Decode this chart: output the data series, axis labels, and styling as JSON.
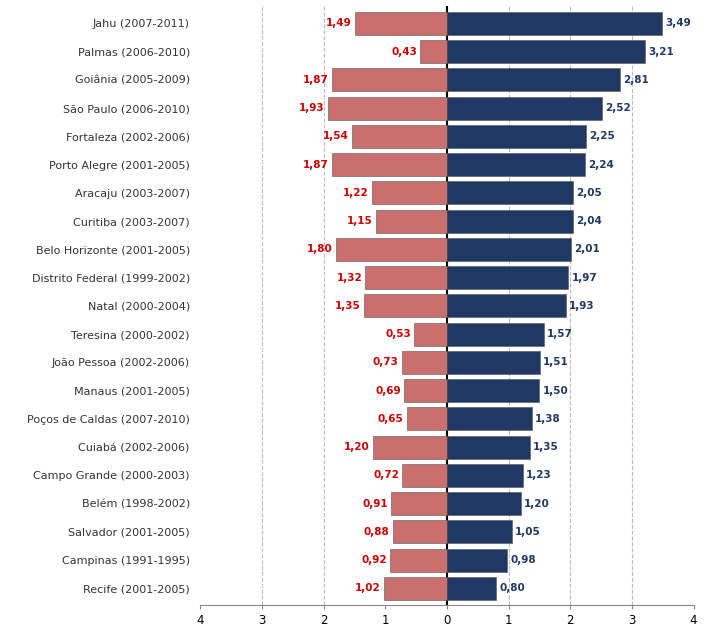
{
  "categories": [
    "Jahu (2007-2011)",
    "Palmas (2006-2010)",
    "Goiânia (2005-2009)",
    "São Paulo (2006-2010)",
    "Fortaleza (2002-2006)",
    "Porto Alegre (2001-2005)",
    "Aracaju (2003-2007)",
    "Curitiba (2003-2007)",
    "Belo Horizonte (2001-2005)",
    "Distrito Federal (1999-2002)",
    "Natal (2000-2004)",
    "Teresina (2000-2002)",
    "João Pessoa (2002-2006)",
    "Manaus (2001-2005)",
    "Poços de Caldas (2007-2010)",
    "Cuiabá (2002-2006)",
    "Campo Grande (2000-2003)",
    "Belém (1998-2002)",
    "Salvador (2001-2005)",
    "Campinas (1991-1995)",
    "Recife (2001-2005)"
  ],
  "female_values": [
    1.49,
    0.43,
    1.87,
    1.93,
    1.54,
    1.87,
    1.22,
    1.15,
    1.8,
    1.32,
    1.35,
    0.53,
    0.73,
    0.69,
    0.65,
    1.2,
    0.72,
    0.91,
    0.88,
    0.92,
    1.02
  ],
  "male_values": [
    3.49,
    3.21,
    2.81,
    2.52,
    2.25,
    2.24,
    2.05,
    2.04,
    2.01,
    1.97,
    1.93,
    1.57,
    1.51,
    1.5,
    1.38,
    1.35,
    1.23,
    1.2,
    1.05,
    0.98,
    0.8
  ],
  "female_color": "#c9706e",
  "male_color": "#1f3864",
  "female_label_color": "#cc0000",
  "male_label_color": "#1f3864",
  "xlim": [
    -4,
    4
  ],
  "xticks": [
    -4,
    -3,
    -2,
    -1,
    0,
    1,
    2,
    3,
    4
  ],
  "xticklabels": [
    "4",
    "3",
    "2",
    "1",
    "0",
    "1",
    "2",
    "3",
    "4"
  ],
  "vlines": [
    -3,
    -2,
    1,
    2,
    3
  ],
  "vline_color": "#bbbbbb",
  "background_color": "#ffffff",
  "bar_height": 0.82,
  "label_fontsize": 7.5,
  "tick_fontsize": 8.5,
  "category_fontsize": 8.0,
  "bar_edgecolor": "#555555",
  "bar_linewidth": 0.4
}
